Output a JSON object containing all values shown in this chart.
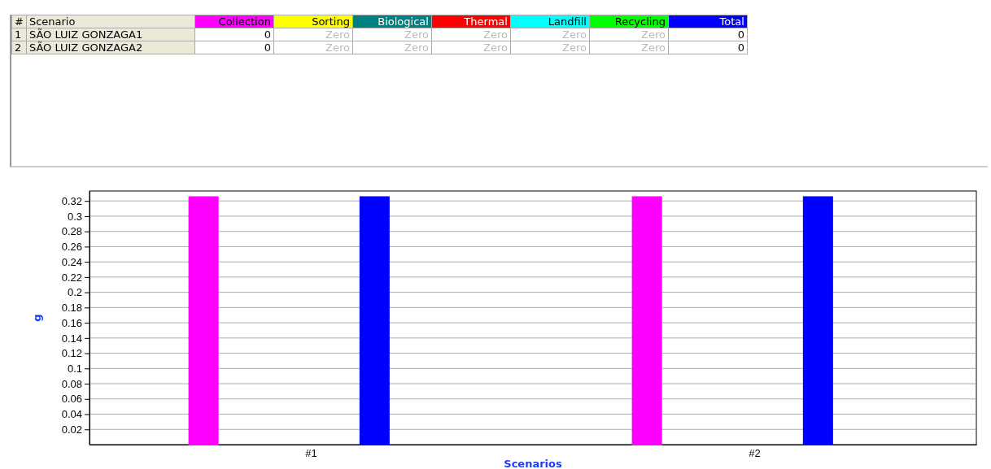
{
  "chart_data": [
    {
      "type": "other",
      "categories": [
        "#",
        "Scenario",
        "Collection",
        "Sorting",
        "Biological",
        "Thermal",
        "Landfill",
        "Recycling",
        "Total"
      ],
      "colors": [
        null,
        null,
        "#ff00ff",
        "#ffff00",
        "#008080",
        "#ff0000",
        "#00ffff",
        "#00ff00",
        "#0000ff"
      ],
      "cell_labels": [
        [
          "1",
          "SÃO LUIZ GONZAGA1",
          "0",
          "Zero",
          "Zero",
          "Zero",
          "Zero",
          "Zero",
          "0"
        ],
        [
          "2",
          "SÃO LUIZ GONZAGA2",
          "0",
          "Zero",
          "Zero",
          "Zero",
          "Zero",
          "Zero",
          "0"
        ]
      ]
    },
    {
      "type": "bar",
      "xlabel": "Scenarios",
      "ylabel": "g",
      "categories": [
        "#1",
        "#2"
      ],
      "series": [
        {
          "color": "#ff00ff",
          "values": [
            0.325,
            0.325
          ]
        },
        {
          "color": "#c8c800",
          "values": [
            0,
            0
          ]
        },
        {
          "color": "#004848",
          "values": [
            0,
            0
          ]
        },
        {
          "color": "#c00000",
          "values": [
            0,
            0
          ]
        },
        {
          "color": "#00c0c0",
          "values": [
            0,
            0
          ]
        },
        {
          "color": "#00c000",
          "values": [
            0,
            0
          ]
        },
        {
          "color": "#0000ff",
          "values": [
            0.325,
            0.325
          ]
        }
      ],
      "ylim": [
        0,
        0.333
      ],
      "yticks": [
        0.02,
        0.04,
        0.06,
        0.08,
        0.1,
        0.12,
        0.14,
        0.16,
        0.18,
        0.2,
        0.22,
        0.24,
        0.26,
        0.28,
        0.3,
        0.32
      ],
      "grid": "y"
    }
  ]
}
